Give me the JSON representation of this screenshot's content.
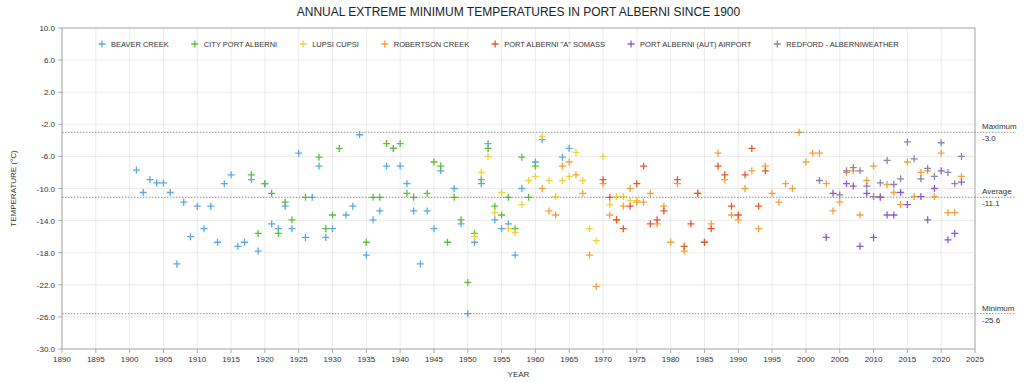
{
  "chart_data": {
    "type": "scatter",
    "title": "ANNUAL EXTREME MINIMUM TEMPERATURES IN PORT ALBERNI SINCE 1900",
    "x_label": "YEAR",
    "y_label": "TEMPERATURE (°C)",
    "xlim": [
      1890,
      2025
    ],
    "xticks": [
      1890,
      1895,
      1900,
      1905,
      1910,
      1915,
      1920,
      1925,
      1930,
      1935,
      1940,
      1945,
      1950,
      1955,
      1960,
      1965,
      1970,
      1975,
      1980,
      1985,
      1990,
      1995,
      2000,
      2005,
      2010,
      2015,
      2020,
      2025
    ],
    "ylim": [
      -30,
      10
    ],
    "yticks": [
      {
        "value": -30,
        "label": "-30.0"
      },
      {
        "value": -26,
        "label": "-26.0"
      },
      {
        "value": -22,
        "label": "-22.0"
      },
      {
        "value": -18,
        "label": "-18.0"
      },
      {
        "value": -14,
        "label": "-14.0"
      },
      {
        "value": -10,
        "label": "-10.0"
      },
      {
        "value": -6,
        "label": "-6.0"
      },
      {
        "value": -2,
        "label": "-2.0"
      },
      {
        "value": 2,
        "label": "2.0"
      },
      {
        "value": 6,
        "label": "6.0"
      },
      {
        "value": 10,
        "label": "10.0"
      }
    ],
    "grid": true,
    "legend": "top",
    "marker": "plus",
    "annotations": [
      {
        "label": "Maximum",
        "value": -3.0,
        "value_label": "-3.0"
      },
      {
        "label": "Average",
        "value": -11.1,
        "value_label": "-11.1"
      },
      {
        "label": "Minimum",
        "value": -25.6,
        "value_label": "-25.6"
      }
    ],
    "series": [
      {
        "name": "BEAVER CREEK",
        "color": "#5aa9e6",
        "x": [
          1901,
          1902,
          1903,
          1904,
          1905,
          1906,
          1907,
          1908,
          1909,
          1910,
          1911,
          1912,
          1913,
          1914,
          1915,
          1916,
          1917,
          1918,
          1919,
          1920,
          1921,
          1922,
          1923,
          1924,
          1925,
          1926,
          1927,
          1928,
          1929,
          1930,
          1932,
          1933,
          1934,
          1935,
          1936,
          1937,
          1938,
          1939,
          1940,
          1941,
          1942,
          1943,
          1944,
          1945,
          1946,
          1948,
          1949,
          1950,
          1951,
          1952,
          1953,
          1954,
          1955,
          1956,
          1957,
          1958,
          1960,
          1961,
          1964,
          1965
        ],
        "values": [
          -7.7,
          -10.5,
          -8.9,
          -9.3,
          -9.3,
          -10.5,
          -19.4,
          -11.7,
          -16.0,
          -12.2,
          -15.0,
          -12.2,
          -16.7,
          -9.4,
          -8.3,
          -17.2,
          -16.7,
          -8.9,
          -17.8,
          -9.4,
          -14.4,
          -15.0,
          -12.2,
          -15.0,
          -5.6,
          -16.1,
          -11.1,
          -7.2,
          -16.1,
          -15.0,
          -13.3,
          -12.2,
          -3.3,
          -18.3,
          -13.9,
          -12.8,
          -7.2,
          -5.0,
          -7.2,
          -9.4,
          -12.8,
          -19.4,
          -12.8,
          -15.0,
          -7.8,
          -10.0,
          -14.4,
          -25.6,
          -16.7,
          -9.4,
          -4.4,
          -13.9,
          -15.0,
          -14.4,
          -18.3,
          -10.0,
          -6.7,
          -3.9,
          -6.1,
          -5.0
        ]
      },
      {
        "name": "CITY PORT ALBERNI",
        "color": "#5cbf3a",
        "x": [
          1918,
          1919,
          1920,
          1921,
          1922,
          1923,
          1924,
          1926,
          1928,
          1929,
          1930,
          1931,
          1935,
          1936,
          1937,
          1938,
          1939,
          1940,
          1941,
          1942,
          1944,
          1945,
          1946,
          1947,
          1948,
          1949,
          1950,
          1951,
          1952,
          1953,
          1954,
          1955,
          1956,
          1957,
          1958,
          1959,
          1960
        ],
        "values": [
          -8.3,
          -15.6,
          -9.4,
          -10.6,
          -15.6,
          -11.7,
          -13.9,
          -11.1,
          -6.1,
          -15.0,
          -13.3,
          -5.0,
          -16.7,
          -11.1,
          -11.1,
          -4.4,
          -5.0,
          -4.4,
          -10.6,
          -11.1,
          -10.6,
          -6.7,
          -7.2,
          -16.7,
          -11.1,
          -13.9,
          -21.7,
          -15.6,
          -8.9,
          -5.0,
          -12.2,
          -13.3,
          -11.1,
          -15.0,
          -6.1,
          -11.1,
          -7.2
        ]
      },
      {
        "name": "LUPSI CUPSI",
        "color": "#f2d23c",
        "x": [
          1951,
          1952,
          1953,
          1954,
          1955,
          1956,
          1957,
          1958,
          1959,
          1960,
          1961,
          1962,
          1963,
          1964,
          1965,
          1966,
          1967,
          1968,
          1969,
          1970,
          1971,
          1972,
          1973,
          1974,
          1975
        ],
        "values": [
          -16.0,
          -8.0,
          -6.0,
          -13.0,
          -10.5,
          -15.0,
          -15.5,
          -12.0,
          -9.0,
          -8.5,
          -3.5,
          -9.0,
          -11.0,
          -9.0,
          -8.5,
          -5.5,
          -9.0,
          -15.0,
          -16.5,
          -6.0,
          -12.0,
          -11.0,
          -11.0,
          -11.5,
          -11.5
        ]
      },
      {
        "name": "ROBERTSON CREEK",
        "color": "#f5a03c",
        "x": [
          1961,
          1962,
          1963,
          1964,
          1965,
          1966,
          1967,
          1968,
          1969,
          1970,
          1971,
          1972,
          1973,
          1974,
          1975,
          1976,
          1977,
          1978,
          1979,
          1980,
          1981,
          1982,
          1984,
          1985,
          1986,
          1987,
          1988,
          1989,
          1990,
          1991,
          1992,
          1993,
          1994,
          1995,
          1996,
          1997,
          1998,
          1999,
          2000,
          2001,
          2002,
          2003,
          2004,
          2005,
          2006,
          2007,
          2008,
          2009,
          2010,
          2011,
          2012,
          2013,
          2014,
          2015,
          2016,
          2017,
          2018,
          2019,
          2020,
          2021,
          2022,
          2023
        ],
        "values": [
          -10.0,
          -12.8,
          -13.3,
          -7.2,
          -6.7,
          -8.3,
          -10.6,
          -18.3,
          -22.2,
          -9.4,
          -13.3,
          -13.9,
          -12.2,
          -10.0,
          -11.7,
          -11.7,
          -10.6,
          -14.4,
          -12.2,
          -16.7,
          -9.4,
          -17.8,
          -10.6,
          -16.7,
          -14.4,
          -5.6,
          -8.9,
          -13.3,
          -13.9,
          -10.0,
          -7.8,
          -15.0,
          -7.2,
          -10.6,
          -11.7,
          -9.4,
          -10.0,
          -3.0,
          -6.7,
          -5.6,
          -5.6,
          -9.4,
          -12.8,
          -11.7,
          -8.0,
          -7.8,
          -13.3,
          -9.0,
          -7.2,
          -11.0,
          -9.5,
          -10.5,
          -12.0,
          -6.7,
          -11.0,
          -8.0,
          -7.8,
          -11.0,
          -5.6,
          -13.0,
          -13.0,
          -8.5
        ]
      },
      {
        "name": "PORT ALBERNI \"A\" SOMASS",
        "color": "#e8582a",
        "x": [
          1970,
          1971,
          1972,
          1973,
          1974,
          1975,
          1976,
          1977,
          1978,
          1979,
          1981,
          1982,
          1983,
          1984,
          1985,
          1986,
          1987,
          1988,
          1989,
          1990,
          1991,
          1992,
          1993,
          1994
        ],
        "values": [
          -8.9,
          -11.1,
          -13.9,
          -15.0,
          -12.2,
          -9.4,
          -7.2,
          -14.4,
          -13.9,
          -12.8,
          -8.9,
          -17.2,
          -14.4,
          -10.6,
          -16.7,
          -15.0,
          -7.2,
          -8.3,
          -12.2,
          -13.3,
          -8.3,
          -5.0,
          -12.2,
          -7.8
        ]
      },
      {
        "name": "PORT ALBERNI (AUT) AIRPORT",
        "color": "#8a5cd6",
        "x": [
          2003,
          2004,
          2006,
          2007,
          2008,
          2009,
          2010,
          2011,
          2012,
          2013,
          2014,
          2015,
          2017,
          2018,
          2019,
          2020,
          2021,
          2022,
          2023
        ],
        "values": [
          -16.1,
          -10.6,
          -9.4,
          -9.7,
          -17.2,
          -10.6,
          -16.1,
          -11.1,
          -13.3,
          -13.3,
          -10.5,
          -12.0,
          -11.0,
          -13.9,
          -10.0,
          -7.8,
          -16.4,
          -15.6,
          -9.2
        ]
      },
      {
        "name": "REDFORD - ALBERNIWEATHER",
        "color": "#8f82ad",
        "x": [
          2002,
          2005,
          2006,
          2007,
          2008,
          2009,
          2010,
          2011,
          2012,
          2013,
          2014,
          2015,
          2016,
          2017,
          2018,
          2019,
          2020,
          2021,
          2022,
          2023
        ],
        "values": [
          -9.0,
          -10.8,
          -7.8,
          -7.4,
          -7.8,
          -9.7,
          -11.0,
          -9.3,
          -6.5,
          -9.5,
          -8.8,
          -4.2,
          -6.3,
          -8.8,
          -7.5,
          -8.5,
          -4.3,
          -8.0,
          -9.4,
          -6.0
        ]
      }
    ]
  }
}
